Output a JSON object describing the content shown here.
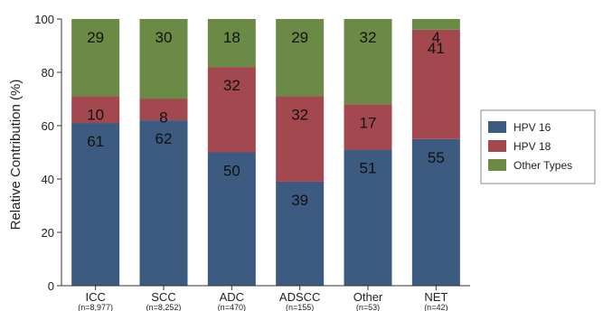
{
  "chart_data": {
    "type": "bar",
    "stacked": true,
    "categories": [
      "ICC",
      "SCC",
      "ADC",
      "ADSCC",
      "Other",
      "NET"
    ],
    "category_counts": [
      "(n=8,977)",
      "(n=8,252)",
      "(n=470)",
      "(n=155)",
      "(n=53)",
      "(n=42)"
    ],
    "series": [
      {
        "name": "HPV 16",
        "values": [
          61,
          62,
          50,
          39,
          51,
          55
        ],
        "color": "#3d5a80"
      },
      {
        "name": "HPV 18",
        "values": [
          10,
          8,
          32,
          32,
          17,
          41
        ],
        "color": "#a3484f"
      },
      {
        "name": "Other Types",
        "values": [
          29,
          30,
          18,
          29,
          32,
          4
        ],
        "color": "#6a8a45"
      }
    ],
    "ylabel": "Relative Contribution (%)",
    "ylim": [
      0,
      100
    ],
    "yticks": [
      0,
      20,
      40,
      60,
      80,
      100
    ],
    "grid": false,
    "legend_position": "right"
  }
}
